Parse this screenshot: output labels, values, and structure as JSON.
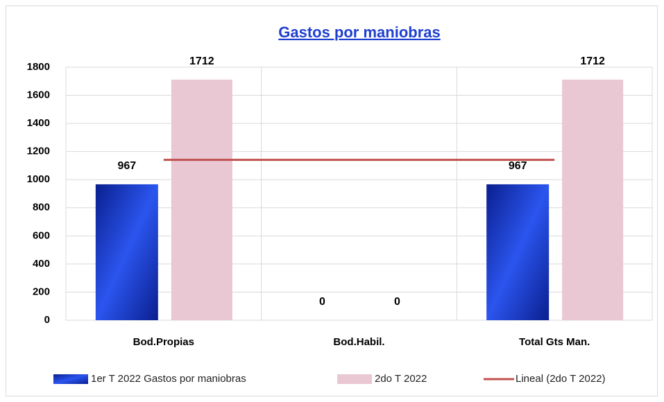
{
  "chart_data": {
    "type": "bar",
    "title": "Gastos por maniobras",
    "categories": [
      "Bod.Propias",
      "Bod.Habil.",
      "Total Gts Man."
    ],
    "series": [
      {
        "name": "1er T 2022 Gastos por maniobras",
        "color": "#1a3fd0",
        "values": [
          967,
          0,
          967
        ]
      },
      {
        "name": "2do T 2022",
        "color": "#e9c7d3",
        "values": [
          1712,
          0,
          1712
        ]
      },
      {
        "name": "Lineal (2do T 2022)",
        "color": "#c0504d",
        "type": "line",
        "values": [
          1141,
          1141,
          1141
        ]
      }
    ],
    "ylim": [
      0,
      1800
    ],
    "yticks": [
      0,
      200,
      400,
      600,
      800,
      1000,
      1200,
      1400,
      1600,
      1800
    ],
    "grid": true,
    "legend": "bottom"
  }
}
